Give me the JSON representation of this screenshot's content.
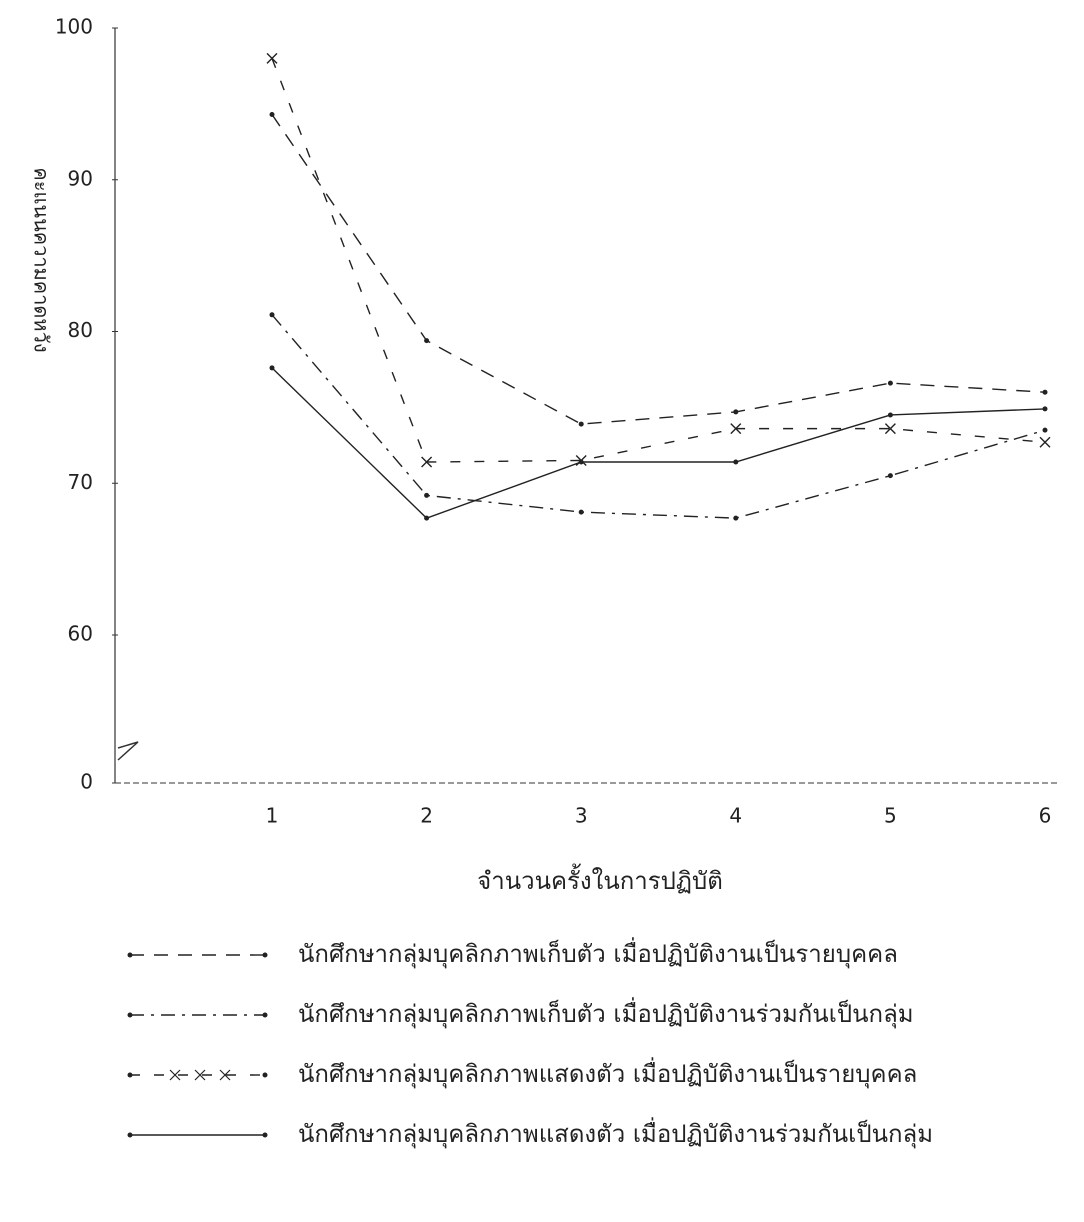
{
  "chart_data": {
    "type": "line",
    "y_label": "คะแนนความคาดหวัง",
    "x_label": "จำนวนครั้งในการปฏิบัติ",
    "categories": [
      "1",
      "2",
      "3",
      "4",
      "5",
      "6"
    ],
    "ylim": [
      0,
      100
    ],
    "yticks": [
      0,
      60,
      70,
      80,
      90,
      100
    ],
    "y_axis_break": true,
    "series": [
      {
        "name": "นักศึกษากลุ่มบุคลิกภาพเก็บตัว เมื่อปฏิบัติงานเป็นรายบุคคล",
        "color": "#222222",
        "style": "dashed",
        "values": [
          94.3,
          79.4,
          73.9,
          74.7,
          76.6,
          76.0
        ]
      },
      {
        "name": "นักศึกษากลุ่มบุคลิกภาพเก็บตัว เมื่อปฏิบัติงานร่วมกันเป็นกลุ่ม",
        "color": "#222222",
        "style": "dashdot",
        "values": [
          81.1,
          69.2,
          68.1,
          67.7,
          70.5,
          73.5
        ]
      },
      {
        "name": "นักศึกษากลุ่มบุคลิกภาพแสดงตัว เมื่อปฏิบัติงานเป็นรายบุคคล",
        "color": "#222222",
        "style": "cross",
        "values": [
          98.0,
          71.4,
          71.5,
          73.6,
          73.6,
          72.7
        ]
      },
      {
        "name": "นักศึกษากลุ่มบุคลิกภาพแสดงตัว เมื่อปฏิบัติงานร่วมกันเป็นกลุ่ม",
        "color": "#222222",
        "style": "solid",
        "values": [
          77.6,
          67.7,
          71.4,
          71.4,
          74.5,
          74.9
        ]
      }
    ]
  }
}
